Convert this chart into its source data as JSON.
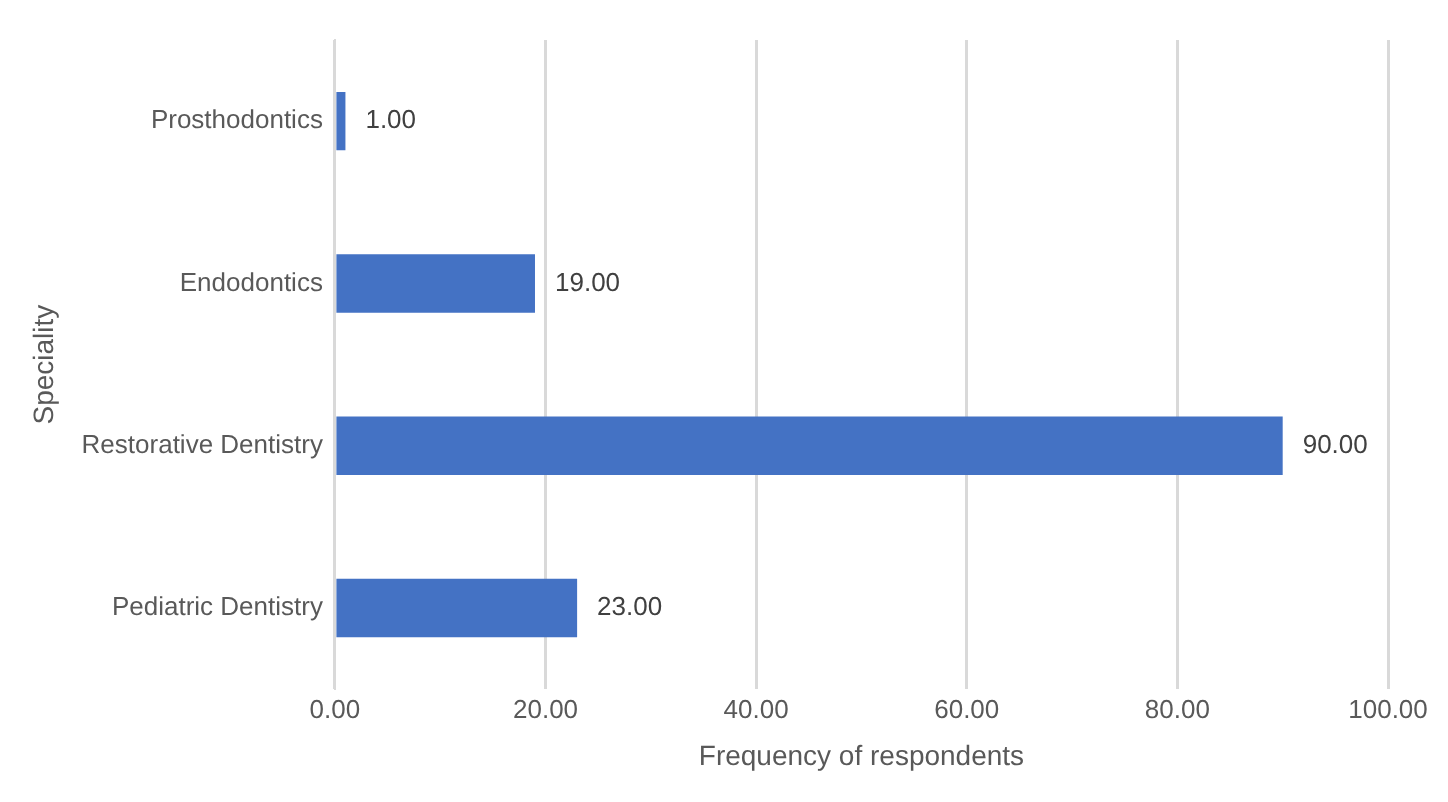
{
  "chart_data": {
    "type": "bar",
    "orientation": "horizontal",
    "xlabel": "Frequency of respondents",
    "ylabel": "Speciality",
    "categories": [
      "Prosthodontics",
      "Endodontics",
      "Restorative Dentistry",
      "Pediatric Dentistry"
    ],
    "values": [
      1,
      19,
      90,
      23
    ],
    "color": "#4472c4",
    "value_labels": [
      "1.00",
      "19.00",
      "90.00",
      "23.00"
    ],
    "xlim": [
      0,
      100
    ],
    "xticks": [
      {
        "value": 0,
        "label": "0.00"
      },
      {
        "value": 20,
        "label": "20.00"
      },
      {
        "value": 40,
        "label": "40.00"
      },
      {
        "value": 60,
        "label": "60.00"
      },
      {
        "value": 80,
        "label": "80.00"
      },
      {
        "value": 100,
        "label": "100.00"
      }
    ],
    "grid": "x",
    "legend": false
  }
}
